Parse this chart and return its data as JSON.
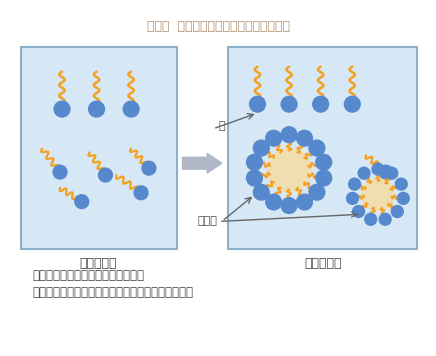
{
  "title": "図３．  界面活性剤のミセル形成の可溶性",
  "title_color": "#b09070",
  "bg_color": "#ffffff",
  "box_fill": "#d6e8f5",
  "box_edge": "#8ab0cc",
  "head_color": "#5588cc",
  "tail_color": "#f5a020",
  "micelle_core_color": "#f0ddb0",
  "arrow_color": "#b0b8c8",
  "line_color": "#666666",
  "label_color": "#444444",
  "label_low": "濃度が低い",
  "label_high": "濃度が高い",
  "label_water": "水",
  "label_micelle": "ミセル",
  "bullet1": "・親水基を外側に向けて安定化する",
  "bullet2": "・ミセルの中に油性成分が可溶化する（とりこむ）",
  "fig_width": 4.36,
  "fig_height": 3.56,
  "dpi": 100
}
